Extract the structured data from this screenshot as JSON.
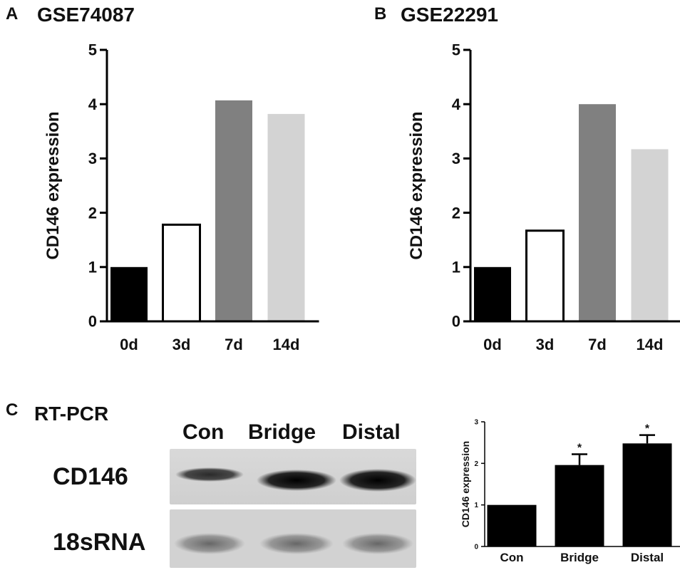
{
  "panels": {
    "A": {
      "letter": "A",
      "title": "GSE74087"
    },
    "B": {
      "letter": "B",
      "title": "GSE22291"
    },
    "C": {
      "letter": "C",
      "title": "RT-PCR"
    }
  },
  "gel": {
    "lanes": [
      "Con",
      "Bridge",
      "Distal"
    ],
    "rows": [
      "CD146",
      "18sRNA"
    ],
    "band_intensity": {
      "CD146": [
        0.55,
        0.95,
        1.0
      ],
      "18sRNA": [
        0.5,
        0.5,
        0.5
      ]
    }
  },
  "chart_data": [
    {
      "type": "bar",
      "panel": "A",
      "title": "GSE74087",
      "categories": [
        "0d",
        "3d",
        "7d",
        "14d"
      ],
      "values": [
        1.0,
        1.78,
        4.07,
        3.82
      ],
      "colors": [
        "#000000",
        "#ffffff",
        "#808080",
        "#d3d3d3"
      ],
      "ylabel": "CD146 expression",
      "xlabel": "",
      "ylim": [
        0,
        5
      ],
      "yticks": [
        "0",
        "1",
        "2",
        "3",
        "4",
        "5"
      ],
      "grid": false
    },
    {
      "type": "bar",
      "panel": "B",
      "title": "GSE22291",
      "categories": [
        "0d",
        "3d",
        "7d",
        "14d"
      ],
      "values": [
        1.0,
        1.67,
        4.0,
        3.17
      ],
      "colors": [
        "#000000",
        "#ffffff",
        "#808080",
        "#d3d3d3"
      ],
      "ylabel": "CD146 expression",
      "xlabel": "",
      "ylim": [
        0,
        5
      ],
      "yticks": [
        "0",
        "1",
        "2",
        "3",
        "4",
        "5"
      ],
      "grid": false
    },
    {
      "type": "bar",
      "panel": "C",
      "title": "",
      "categories": [
        "Con",
        "Bridge",
        "Distal"
      ],
      "values": [
        1.0,
        1.96,
        2.48
      ],
      "errors": [
        0,
        0.26,
        0.2
      ],
      "significance": [
        "",
        "*",
        "*"
      ],
      "colors": [
        "#000000",
        "#000000",
        "#000000"
      ],
      "ylabel": "CD146 expression",
      "xlabel": "",
      "ylim": [
        0,
        3
      ],
      "yticks": [
        "0",
        "1",
        "2",
        "3"
      ],
      "grid": false
    }
  ]
}
